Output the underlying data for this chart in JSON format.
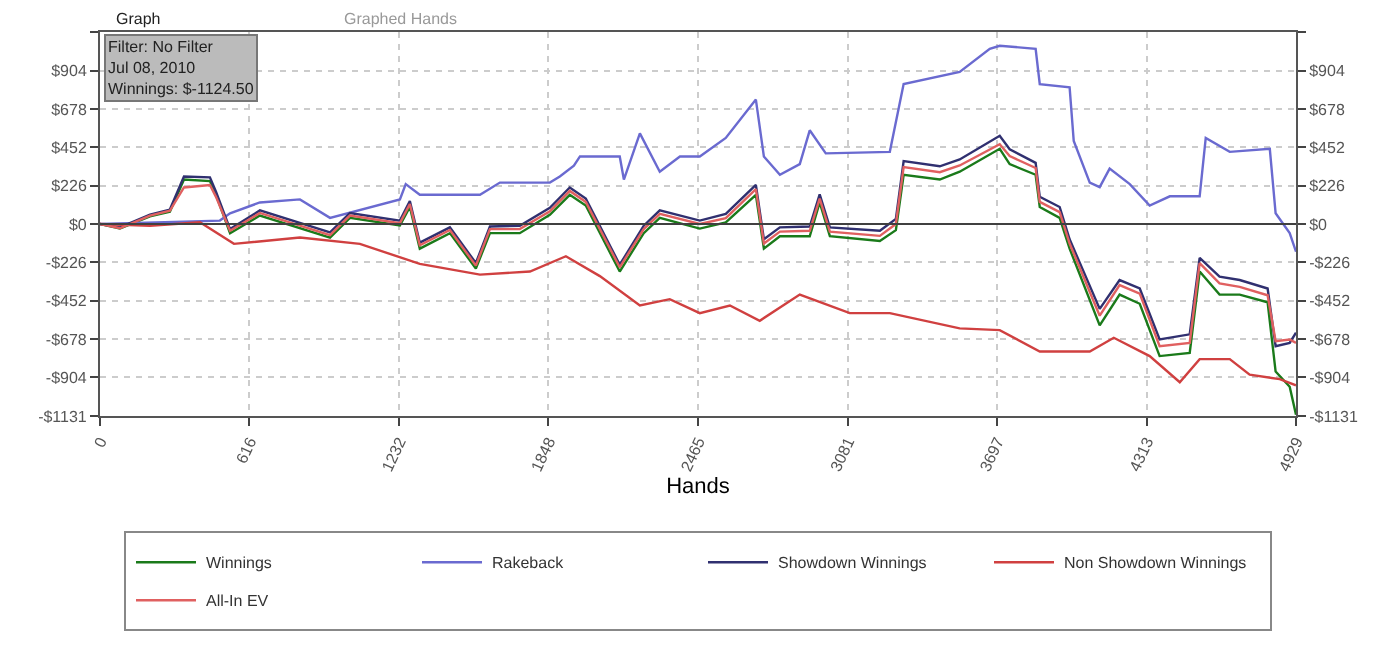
{
  "chart_data": {
    "type": "line",
    "xlabel": "Hands",
    "annotations": [
      "Graph",
      "Graphed Hands",
      "Filter: No Filter\nJul 08, 2010\nWinnings: $-1124.50"
    ],
    "x": [
      0,
      82,
      206,
      288,
      346,
      453,
      478,
      536,
      659,
      948,
      1030,
      1236,
      1277,
      1318,
      1442,
      1549,
      1607,
      1730,
      1854,
      1936,
      2002,
      2142,
      2241,
      2307,
      2472,
      2579,
      2703,
      2736,
      2802,
      2925,
      2966,
      3008,
      3214,
      3280,
      3312,
      3461,
      3543,
      3708,
      3749,
      3856,
      3873,
      3955,
      3996,
      4120,
      4202,
      4285,
      4367,
      4491,
      4532,
      4614,
      4697,
      4812,
      4845,
      4903,
      4929
    ],
    "series": [
      {
        "name": "Winnings",
        "color": "#1a7a1a",
        "values": [
          0,
          -27,
          45,
          72,
          262,
          253,
          172,
          -54,
          50,
          -80,
          36,
          -9,
          100,
          -145,
          -54,
          -262,
          -54,
          -54,
          54,
          172,
          109,
          -280,
          -54,
          36,
          -27,
          9,
          172,
          -145,
          -72,
          -72,
          127,
          -72,
          -100,
          -36,
          290,
          262,
          308,
          443,
          353,
          290,
          100,
          36,
          -145,
          -597,
          -416,
          -470,
          -778,
          -760,
          -280,
          -416,
          -416,
          -461,
          -869,
          -959,
          -1124
        ]
      },
      {
        "name": "Rakeback",
        "color": "#6a6ad0",
        "x": [
          0,
          494,
          536,
          659,
          824,
          948,
          1236,
          1260,
          1318,
          1566,
          1648,
          1854,
          1895,
          1953,
          1978,
          2142,
          2159,
          2225,
          2307,
          2390,
          2472,
          2579,
          2703,
          2736,
          2802,
          2884,
          2925,
          2991,
          3255,
          3312,
          3543,
          3667,
          3708,
          3856,
          3873,
          3996,
          4013,
          4079,
          4120,
          4161,
          4244,
          4326,
          4409,
          4532,
          4557,
          4656,
          4821,
          4845,
          4903,
          4929
        ],
        "values": [
          0,
          20,
          63,
          127,
          145,
          36,
          145,
          235,
          172,
          172,
          244,
          244,
          280,
          344,
          398,
          398,
          262,
          534,
          308,
          398,
          398,
          507,
          733,
          398,
          290,
          353,
          552,
          416,
          425,
          824,
          896,
          1032,
          1050,
          1032,
          824,
          805,
          489,
          244,
          217,
          326,
          235,
          109,
          163,
          163,
          507,
          425,
          443,
          63,
          -54,
          -163
        ]
      },
      {
        "name": "Showdown Winnings",
        "color": "#303070",
        "values": [
          0,
          -20,
          55,
          85,
          280,
          275,
          190,
          -30,
          80,
          -50,
          65,
          20,
          135,
          -110,
          -20,
          -230,
          -15,
          -10,
          95,
          215,
          150,
          -240,
          -10,
          80,
          20,
          60,
          230,
          -90,
          -20,
          -15,
          175,
          -20,
          -40,
          30,
          370,
          340,
          380,
          520,
          440,
          360,
          160,
          100,
          -90,
          -500,
          -330,
          -380,
          -680,
          -650,
          -200,
          -310,
          -330,
          -380,
          -720,
          -700,
          -640
        ]
      },
      {
        "name": "Non Showdown Winnings",
        "color": "#d04040",
        "x": [
          0,
          206,
          412,
          552,
          824,
          1071,
          1318,
          1566,
          1772,
          1920,
          2060,
          2225,
          2348,
          2472,
          2596,
          2719,
          2884,
          3090,
          3255,
          3543,
          3708,
          3873,
          4079,
          4178,
          4326,
          4450,
          4532,
          4656,
          4738,
          4862,
          4929
        ],
        "values": [
          0,
          -10,
          10,
          -117,
          -80,
          -117,
          -235,
          -298,
          -280,
          -190,
          -307,
          -480,
          -443,
          -525,
          -480,
          -570,
          -416,
          -525,
          -525,
          -615,
          -625,
          -751,
          -751,
          -670,
          -778,
          -932,
          -796,
          -796,
          -887,
          -914,
          -950
        ]
      },
      {
        "name": "All-In EV",
        "color": "#e06060",
        "values": [
          0,
          -25,
          50,
          78,
          215,
          230,
          160,
          -40,
          65,
          -65,
          50,
          5,
          118,
          -125,
          -35,
          -245,
          -30,
          -30,
          75,
          195,
          130,
          -255,
          -30,
          60,
          0,
          35,
          205,
          -115,
          -45,
          -40,
          150,
          -45,
          -70,
          0,
          335,
          305,
          345,
          470,
          400,
          330,
          130,
          70,
          -115,
          -540,
          -360,
          -410,
          -720,
          -700,
          -230,
          -350,
          -370,
          -420,
          -690,
          -680,
          -700
        ]
      }
    ],
    "xlim": [
      0,
      4929
    ],
    "xticks": [
      0,
      616,
      1232,
      1848,
      2465,
      3081,
      3697,
      4313,
      4929
    ],
    "ylim": [
      -1131,
      1131
    ],
    "yticks": [
      {
        "value": -1131,
        "label": "-$1131"
      },
      {
        "value": -904,
        "label": "-$904"
      },
      {
        "value": -678,
        "label": "-$678"
      },
      {
        "value": -452,
        "label": "-$452"
      },
      {
        "value": -226,
        "label": "-$226"
      },
      {
        "value": 0,
        "label": "$0"
      },
      {
        "value": 226,
        "label": "$226"
      },
      {
        "value": 452,
        "label": "$452"
      },
      {
        "value": 678,
        "label": "$678"
      },
      {
        "value": 904,
        "label": "$904"
      },
      {
        "value": 1131,
        "label": null
      }
    ],
    "y2lim": [
      -1131,
      1131
    ],
    "y2ticks": [
      {
        "value": -1131,
        "label": "-$1131"
      },
      {
        "value": -904,
        "label": "-$904"
      },
      {
        "value": -678,
        "label": "-$678"
      },
      {
        "value": -452,
        "label": "-$452"
      },
      {
        "value": -226,
        "label": "-$226"
      },
      {
        "value": 0,
        "label": "$0"
      },
      {
        "value": 226,
        "label": "$226"
      },
      {
        "value": 452,
        "label": "$452"
      },
      {
        "value": 678,
        "label": "$678"
      },
      {
        "value": 904,
        "label": "$904"
      },
      {
        "value": 1131,
        "label": null
      }
    ],
    "ref_lines": [
      {
        "axis": "y",
        "value": 0,
        "color": "#404040"
      }
    ],
    "grid": true,
    "legend": "bottom",
    "marker": "none",
    "line_style": "solid"
  }
}
